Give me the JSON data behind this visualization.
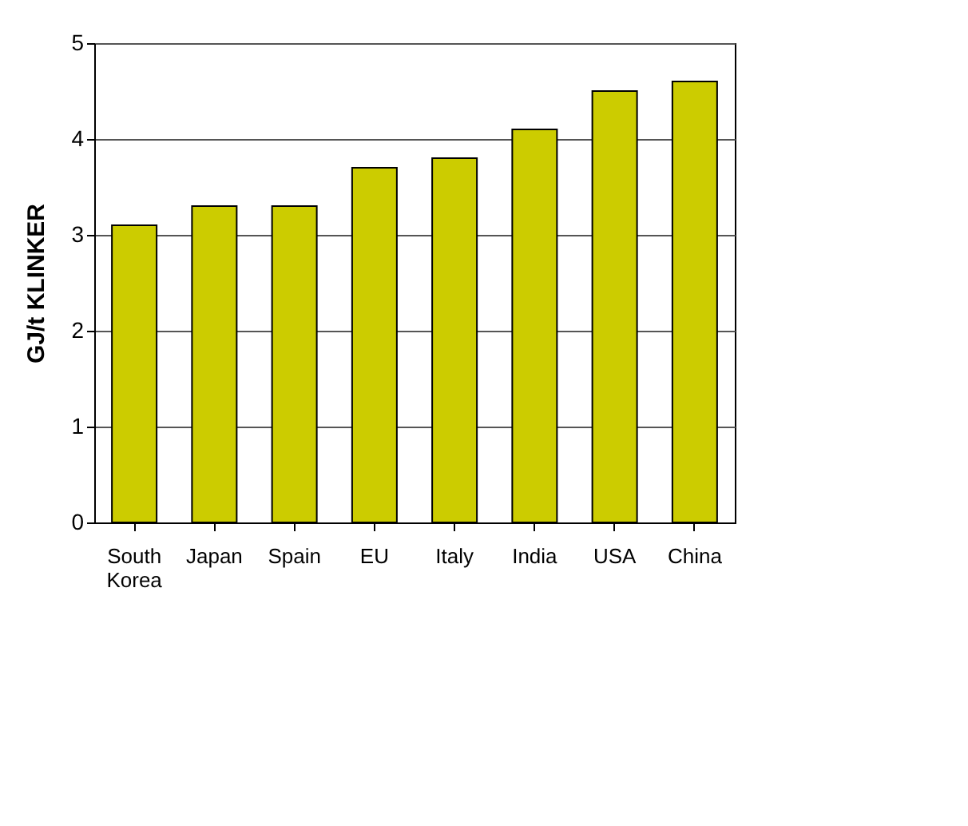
{
  "chart_data": {
    "type": "bar",
    "ylabel": "GJ/t KLINKER",
    "categories": [
      "South Korea",
      "Japan",
      "Spain",
      "EU",
      "Italy",
      "India",
      "USA",
      "China"
    ],
    "values": [
      3.1,
      3.3,
      3.3,
      3.7,
      3.8,
      4.1,
      4.5,
      4.6
    ],
    "color": "#cccc00",
    "ylim": [
      0,
      5
    ],
    "yticks": [
      0,
      1,
      2,
      3,
      4,
      5
    ],
    "grid": "y"
  }
}
